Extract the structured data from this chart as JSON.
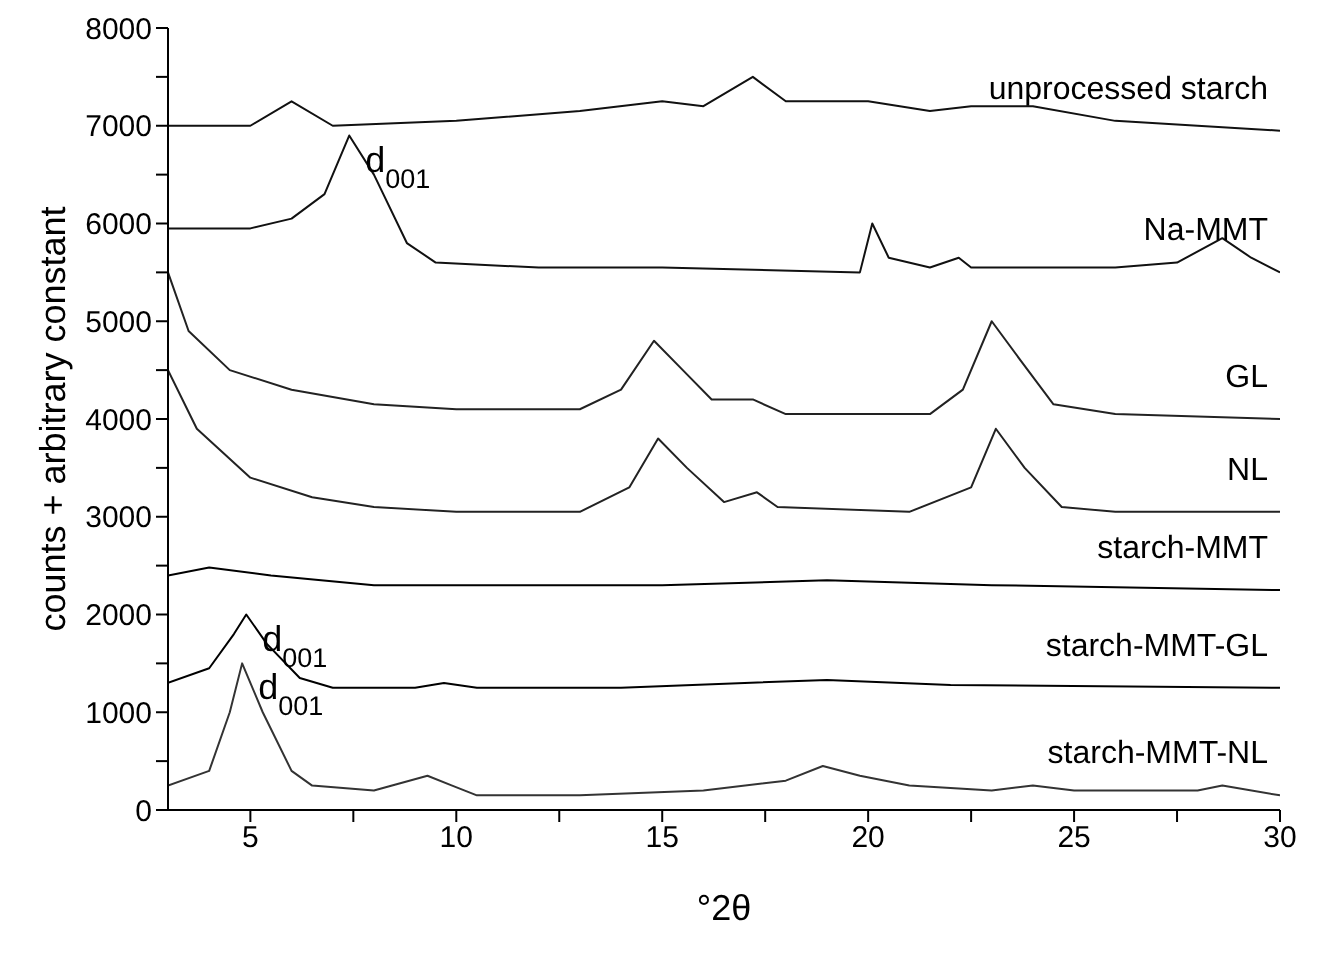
{
  "chart_data": {
    "type": "line",
    "xlabel": "°2θ",
    "ylabel": "counts + arbitrary constant",
    "xlim": [
      3,
      30
    ],
    "xticks": [
      5,
      {
        "value": 7.5,
        "label": null
      },
      10,
      {
        "value": 12.5,
        "label": null
      },
      15,
      {
        "value": 17.5,
        "label": null
      },
      20,
      {
        "value": 22.5,
        "label": null
      },
      25,
      {
        "value": 27.5,
        "label": null
      },
      30
    ],
    "ylim": [
      0,
      8000
    ],
    "yticks": [
      0,
      {
        "value": 500,
        "label": null
      },
      1000,
      {
        "value": 1500,
        "label": null
      },
      2000,
      {
        "value": 2500,
        "label": null
      },
      3000,
      {
        "value": 3500,
        "label": null
      },
      4000,
      {
        "value": 4500,
        "label": null
      },
      5000,
      {
        "value": 5500,
        "label": null
      },
      6000,
      {
        "value": 6500,
        "label": null
      },
      7000,
      {
        "value": 7500,
        "label": null
      },
      8000
    ],
    "marker": "none",
    "line_style": "solid",
    "series": [
      {
        "name": "unprocessed starch",
        "color": "#111111",
        "x": [
          3,
          5,
          6,
          7,
          10,
          13,
          15,
          16,
          17.2,
          18,
          20,
          21.5,
          22.5,
          24,
          26,
          28,
          30
        ],
        "values": [
          7000,
          7000,
          7250,
          7000,
          7050,
          7150,
          7250,
          7200,
          7500,
          7250,
          7250,
          7150,
          7200,
          7200,
          7050,
          7000,
          6950
        ]
      },
      {
        "name": "Na-MMT",
        "color": "#111111",
        "x": [
          3,
          5,
          6,
          6.8,
          7.4,
          8,
          8.8,
          9.5,
          12,
          15,
          19.8,
          20.1,
          20.5,
          21.5,
          22.2,
          22.5,
          26,
          27.5,
          28.6,
          29.3,
          30
        ],
        "values": [
          5950,
          5950,
          6050,
          6300,
          6900,
          6500,
          5800,
          5600,
          5550,
          5550,
          5500,
          6000,
          5650,
          5550,
          5650,
          5550,
          5550,
          5600,
          5850,
          5650,
          5500
        ]
      },
      {
        "name": "GL",
        "color": "#222222",
        "x": [
          3,
          3.5,
          4.5,
          6,
          8,
          10,
          13,
          14,
          14.8,
          15.5,
          16.2,
          17.2,
          18,
          21.5,
          22.3,
          23,
          23.7,
          24.5,
          26,
          30
        ],
        "values": [
          5500,
          4900,
          4500,
          4300,
          4150,
          4100,
          4100,
          4300,
          4800,
          4500,
          4200,
          4200,
          4050,
          4050,
          4300,
          5000,
          4600,
          4150,
          4050,
          4000
        ]
      },
      {
        "name": "NL",
        "color": "#222222",
        "x": [
          3,
          3.7,
          5,
          6.5,
          8,
          10,
          13,
          14.2,
          14.9,
          15.6,
          16.5,
          17.3,
          17.8,
          21,
          22.5,
          23.1,
          23.8,
          24.7,
          26,
          30
        ],
        "values": [
          4500,
          3900,
          3400,
          3200,
          3100,
          3050,
          3050,
          3300,
          3800,
          3500,
          3150,
          3250,
          3100,
          3050,
          3300,
          3900,
          3500,
          3100,
          3050,
          3050
        ]
      },
      {
        "name": "starch-MMT",
        "color": "#000000",
        "x": [
          3,
          4,
          5.5,
          8,
          15,
          19,
          23,
          30
        ],
        "values": [
          2400,
          2480,
          2400,
          2300,
          2300,
          2350,
          2300,
          2250
        ]
      },
      {
        "name": "starch-MMT-GL",
        "color": "#000000",
        "x": [
          3,
          4,
          4.6,
          4.9,
          5.4,
          6.2,
          7,
          9,
          9.7,
          10.5,
          14,
          17,
          19,
          22,
          30
        ],
        "values": [
          1300,
          1450,
          1800,
          2000,
          1700,
          1350,
          1250,
          1250,
          1300,
          1250,
          1250,
          1300,
          1330,
          1280,
          1250
        ]
      },
      {
        "name": "starch-MMT-NL",
        "color": "#333333",
        "x": [
          3,
          4,
          4.5,
          4.8,
          5.3,
          6,
          6.5,
          8,
          9.3,
          9.9,
          10.5,
          13,
          16,
          18,
          18.9,
          19.8,
          21,
          23,
          24,
          25,
          28,
          28.6,
          30
        ],
        "values": [
          250,
          400,
          1000,
          1500,
          1000,
          400,
          250,
          200,
          350,
          250,
          150,
          150,
          200,
          300,
          450,
          350,
          250,
          200,
          250,
          200,
          200,
          250,
          150
        ]
      }
    ],
    "annotations": [
      {
        "text": "d$_{001}$",
        "x": 7.4,
        "y": 6900
      },
      {
        "text": "d$_{001}$",
        "x": 4.9,
        "y": 2000
      },
      {
        "text": "d$_{001}$",
        "x": 4.8,
        "y": 1500
      }
    ]
  }
}
